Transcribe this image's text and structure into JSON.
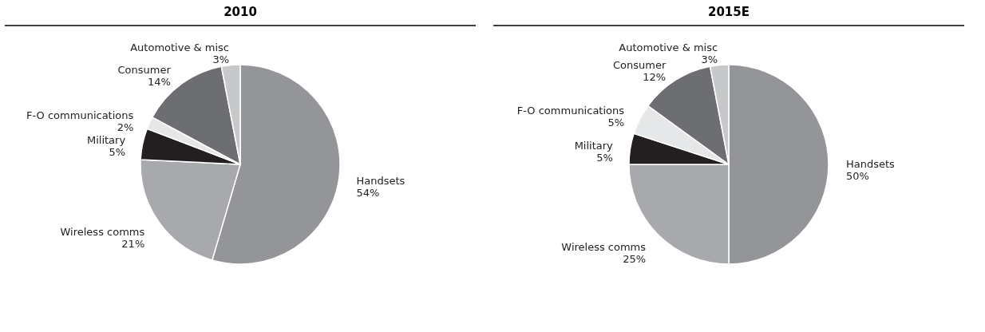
{
  "chart_data": [
    {
      "type": "pie",
      "title": "2010",
      "categories": [
        "Handsets",
        "Wireless comms",
        "Military",
        "F-O communications",
        "Consumer",
        "Automotive & misc"
      ],
      "values": [
        54,
        21,
        5,
        2,
        14,
        3
      ],
      "value_labels": [
        "54%",
        "21%",
        "5%",
        "2%",
        "14%",
        "3%"
      ],
      "colors": [
        "#939598",
        "#a7a9ac",
        "#231f20",
        "#e6e7e8",
        "#6d6e71",
        "#c7c8ca"
      ],
      "legend": false
    },
    {
      "type": "pie",
      "title": "2015E",
      "categories": [
        "Handsets",
        "Wireless comms",
        "Military",
        "F-O communications",
        "Consumer",
        "Automotive & misc"
      ],
      "values": [
        50,
        25,
        5,
        5,
        12,
        3
      ],
      "value_labels": [
        "50%",
        "25%",
        "5%",
        "5%",
        "12%",
        "3%"
      ],
      "colors": [
        "#939598",
        "#a7a9ac",
        "#231f20",
        "#e6e7e8",
        "#6d6e71",
        "#c7c8ca"
      ],
      "legend": false
    }
  ]
}
